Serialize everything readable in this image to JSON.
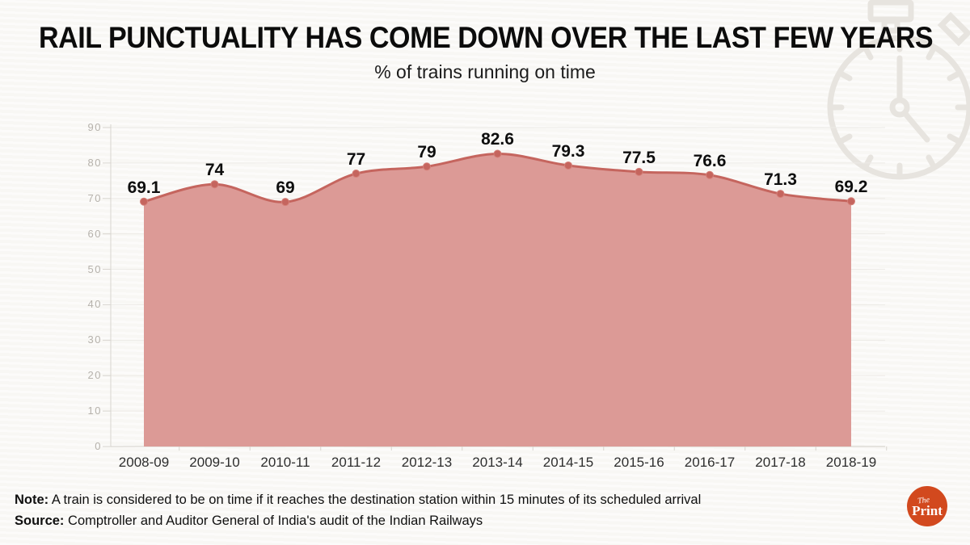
{
  "header": {
    "title": "RAIL PUNCTUALITY HAS COME DOWN OVER THE LAST FEW YEARS",
    "subtitle": "% of trains running on time"
  },
  "chart_data": {
    "type": "area",
    "title": "RAIL PUNCTUALITY HAS COME DOWN OVER THE LAST FEW YEARS",
    "subtitle": "% of trains running on time",
    "categories": [
      "2008-09",
      "2009-10",
      "2010-11",
      "2011-12",
      "2012-13",
      "2013-14",
      "2014-15",
      "2015-16",
      "2016-17",
      "2017-18",
      "2018-19"
    ],
    "values": [
      69.1,
      74,
      69,
      77,
      79,
      82.6,
      79.3,
      77.5,
      76.6,
      71.3,
      69.2
    ],
    "value_labels": [
      "69.1",
      "74",
      "69",
      "77",
      "79",
      "82.6",
      "79.3",
      "77.5",
      "76.6",
      "71.3",
      "69.2"
    ],
    "xlabel": "",
    "ylabel": "",
    "ylim": [
      0,
      90
    ],
    "yticks": [
      0,
      10,
      20,
      30,
      40,
      50,
      60,
      70,
      80,
      90
    ],
    "grid": true,
    "legend": false,
    "smooth": true,
    "colors": {
      "fill": "#dc9a96",
      "line": "#c5655e",
      "marker": "#c5655e",
      "grid": "#edebe7",
      "axis": "#d8d5cf",
      "y_tick_text": "#b6b2ac",
      "x_tick_text": "#2e2e2e",
      "data_label": "#0e0e0e"
    }
  },
  "footer": {
    "note_label": "Note:",
    "note_text": " A train is considered to be on time if it reaches the destination station within 15 minutes of its scheduled arrival",
    "source_label": "Source:",
    "source_text": " Comptroller and Auditor General of India's audit of the Indian Railways"
  },
  "logo": {
    "line1": "The",
    "line2": "Print",
    "color": "#d2491e"
  },
  "watermark": {
    "icon": "stopwatch-icon",
    "color": "#e7e4df"
  }
}
